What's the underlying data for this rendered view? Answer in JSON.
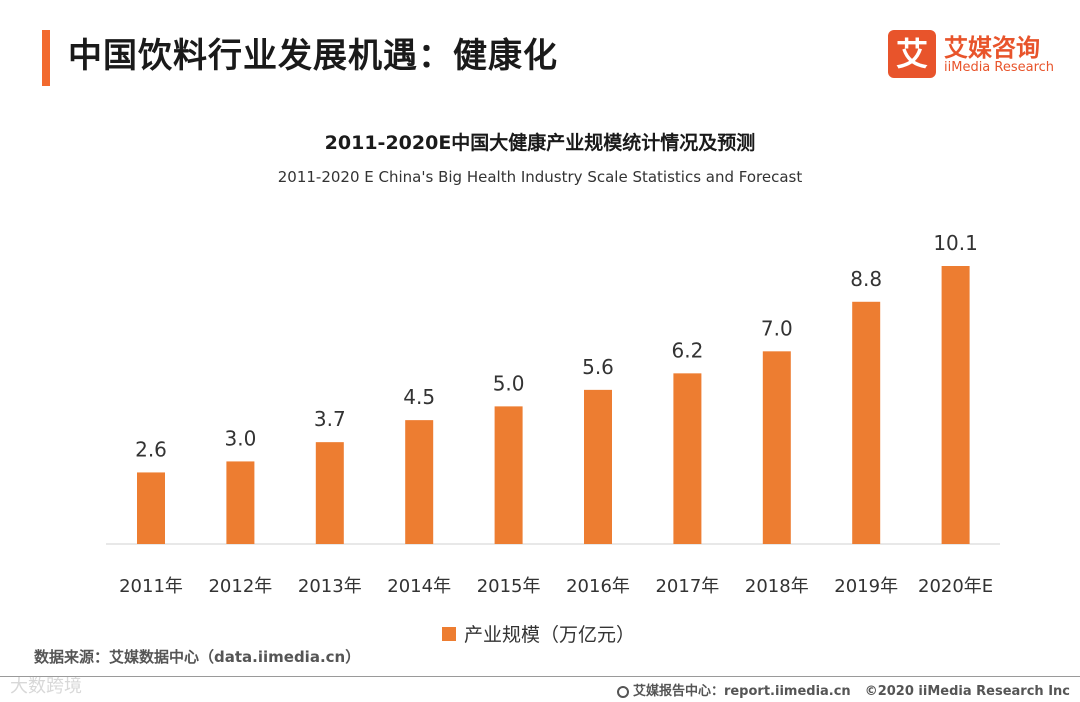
{
  "header": {
    "title": "中国饮料行业发展机遇：健康化",
    "accent_color": "#f26a2e"
  },
  "logo": {
    "mark": "艾",
    "name_cn": "艾媒咨询",
    "name_en": "iiMedia Research",
    "color": "#e8542b"
  },
  "chart_data": {
    "type": "bar",
    "title": "2011-2020E中国大健康产业规模统计情况及预测",
    "subtitle": "2011-2020 E China's Big Health Industry Scale Statistics and Forecast",
    "categories": [
      "2011年",
      "2012年",
      "2013年",
      "2014年",
      "2015年",
      "2016年",
      "2017年",
      "2018年",
      "2019年",
      "2020年E"
    ],
    "series": [
      {
        "name": "产业规模（万亿元）",
        "values": [
          2.6,
          3.0,
          3.7,
          4.5,
          5.0,
          5.6,
          6.2,
          7.0,
          8.8,
          10.1
        ],
        "value_labels": [
          "2.6",
          "3.0",
          "3.7",
          "4.5",
          "5.0",
          "5.6",
          "6.2",
          "7.0",
          "8.8",
          "10.1"
        ],
        "color": "#ed7d31"
      }
    ],
    "xlabel": "",
    "ylabel": "",
    "ylim": [
      0,
      10.1
    ],
    "grid": false,
    "legend": "bottom-center",
    "data_labels": true
  },
  "source": "数据来源：艾媒数据中心（data.iimedia.cn）",
  "watermark": "大数跨境",
  "footer": {
    "report": "艾媒报告中心：report.iimedia.cn",
    "copyright": "©2020 iiMedia Research Inc"
  }
}
